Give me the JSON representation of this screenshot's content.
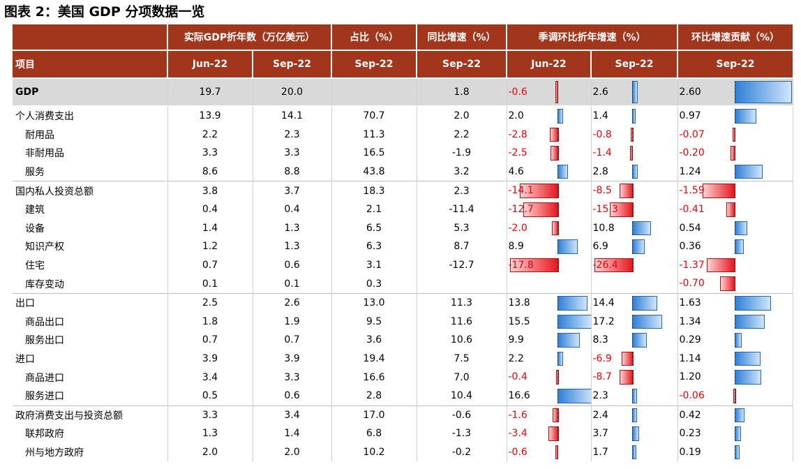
{
  "title": "图表 2：美国 GDP 分项数据一览",
  "header": {
    "top": {
      "real_gdp": "实际GDP折年数（万亿美元）",
      "share": "占比（%）",
      "yoy": "同比增速（%）",
      "saar": "季调环比折年增速（%）",
      "contrib": "环比增速贡献（%）"
    },
    "sub": {
      "item": "项目",
      "c1": "Jun-22",
      "c2": "Sep-22",
      "c3": "Sep-22",
      "c4": "Sep-22",
      "c5": "Jun-22",
      "c6": "Sep-22",
      "c7": "Sep-22"
    }
  },
  "colors": {
    "header_bg": "#a2361c",
    "gdp_row_bg": "#d9d9d9",
    "positive": "#2f80d7",
    "negative": "#e8000b"
  },
  "rows": [
    {
      "label": "GDP",
      "indent": 0,
      "gdp": true,
      "group": false,
      "jun": "19.7",
      "sep": "20.0",
      "share": "",
      "yoy": "1.8",
      "q_jun": "-0.6",
      "q_sep": "2.6",
      "contrib": "2.60"
    },
    {
      "label": "个人消费支出",
      "indent": 0,
      "group": true,
      "jun": "13.9",
      "sep": "14.1",
      "share": "70.7",
      "yoy": "2.0",
      "q_jun": "2.0",
      "q_sep": "1.4",
      "contrib": "0.97"
    },
    {
      "label": "耐用品",
      "indent": 1,
      "group": false,
      "jun": "2.2",
      "sep": "2.3",
      "share": "11.3",
      "yoy": "2.2",
      "q_jun": "-2.8",
      "q_sep": "-0.8",
      "contrib": "-0.07"
    },
    {
      "label": "非耐用品",
      "indent": 1,
      "group": false,
      "jun": "3.3",
      "sep": "3.3",
      "share": "16.5",
      "yoy": "-1.9",
      "q_jun": "-2.5",
      "q_sep": "-1.4",
      "contrib": "-0.20"
    },
    {
      "label": "服务",
      "indent": 1,
      "group": false,
      "jun": "8.6",
      "sep": "8.8",
      "share": "43.8",
      "yoy": "3.2",
      "q_jun": "4.6",
      "q_sep": "2.8",
      "contrib": "1.24"
    },
    {
      "label": "国内私人投资总额",
      "indent": 0,
      "group": true,
      "jun": "3.8",
      "sep": "3.7",
      "share": "18.3",
      "yoy": "2.3",
      "q_jun": "-14.1",
      "q_sep": "-8.5",
      "contrib": "-1.59"
    },
    {
      "label": "建筑",
      "indent": 1,
      "group": false,
      "jun": "0.4",
      "sep": "0.4",
      "share": "2.1",
      "yoy": "-11.4",
      "q_jun": "-12.7",
      "q_sep": "-15.3",
      "contrib": "-0.41"
    },
    {
      "label": "设备",
      "indent": 1,
      "group": false,
      "jun": "1.4",
      "sep": "1.3",
      "share": "6.5",
      "yoy": "5.3",
      "q_jun": "-2.0",
      "q_sep": "10.8",
      "contrib": "0.54"
    },
    {
      "label": "知识产权",
      "indent": 1,
      "group": false,
      "jun": "1.2",
      "sep": "1.3",
      "share": "6.3",
      "yoy": "8.7",
      "q_jun": "8.9",
      "q_sep": "6.9",
      "contrib": "0.36"
    },
    {
      "label": "住宅",
      "indent": 1,
      "group": false,
      "jun": "0.7",
      "sep": "0.6",
      "share": "3.1",
      "yoy": "-12.7",
      "q_jun": "-17.8",
      "q_sep": "-26.4",
      "contrib": "-1.37"
    },
    {
      "label": "库存变动",
      "indent": 1,
      "group": false,
      "jun": "0.1",
      "sep": "0.1",
      "share": "0.3",
      "yoy": "",
      "q_jun": "",
      "q_sep": "",
      "contrib": "-0.70"
    },
    {
      "label": "出口",
      "indent": 0,
      "group": true,
      "jun": "2.5",
      "sep": "2.6",
      "share": "13.0",
      "yoy": "11.3",
      "q_jun": "13.8",
      "q_sep": "14.4",
      "contrib": "1.63"
    },
    {
      "label": "商品出口",
      "indent": 1,
      "group": false,
      "jun": "1.8",
      "sep": "1.9",
      "share": "9.5",
      "yoy": "11.6",
      "q_jun": "15.5",
      "q_sep": "17.2",
      "contrib": "1.34"
    },
    {
      "label": "服务出口",
      "indent": 1,
      "group": false,
      "jun": "0.7",
      "sep": "0.7",
      "share": "3.6",
      "yoy": "10.6",
      "q_jun": "9.9",
      "q_sep": "8.3",
      "contrib": "0.29"
    },
    {
      "label": "进口",
      "indent": 0,
      "group": false,
      "jun": "3.9",
      "sep": "3.9",
      "share": "19.4",
      "yoy": "7.5",
      "q_jun": "2.2",
      "q_sep": "-6.9",
      "contrib": "1.14"
    },
    {
      "label": "商品进口",
      "indent": 1,
      "group": false,
      "jun": "3.4",
      "sep": "3.3",
      "share": "16.6",
      "yoy": "7.0",
      "q_jun": "-0.4",
      "q_sep": "-8.7",
      "contrib": "1.20"
    },
    {
      "label": "服务进口",
      "indent": 1,
      "group": false,
      "jun": "0.5",
      "sep": "0.6",
      "share": "2.8",
      "yoy": "10.4",
      "q_jun": "16.6",
      "q_sep": "2.3",
      "contrib": "-0.06"
    },
    {
      "label": "政府消费支出与投资总额",
      "indent": 0,
      "group": true,
      "jun": "3.3",
      "sep": "3.4",
      "share": "17.0",
      "yoy": "-0.6",
      "q_jun": "-1.6",
      "q_sep": "2.4",
      "contrib": "0.42"
    },
    {
      "label": "联邦政府",
      "indent": 1,
      "group": false,
      "jun": "1.3",
      "sep": "1.4",
      "share": "6.8",
      "yoy": "-1.3",
      "q_jun": "-3.4",
      "q_sep": "3.7",
      "contrib": "0.23"
    },
    {
      "label": "州与地方政府",
      "indent": 1,
      "group": false,
      "jun": "2.0",
      "sep": "2.0",
      "share": "10.2",
      "yoy": "-0.2",
      "q_jun": "-0.6",
      "q_sep": "1.7",
      "contrib": "0.19"
    }
  ]
}
